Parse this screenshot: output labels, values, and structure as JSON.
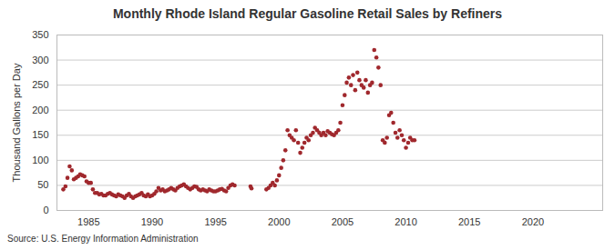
{
  "chart_data": {
    "type": "scatter",
    "title": "Monthly Rhode Island Regular Gasoline Retail Sales by Refiners",
    "y_label": "Thousand Gallons per Day",
    "source": "Source: U.S. Energy Information Administration",
    "color": "#a0282d",
    "marker": "circle",
    "grid": true,
    "xlim": [
      1982.5,
      2025.5
    ],
    "xticks": [
      1985,
      1990,
      1995,
      2000,
      2005,
      2010,
      2015,
      2020
    ],
    "ylim": [
      0,
      350
    ],
    "yticks": [
      0,
      50,
      100,
      150,
      200,
      250,
      300,
      350
    ],
    "x": [
      1983.0,
      1983.17,
      1983.33,
      1983.5,
      1983.67,
      1983.83,
      1984.0,
      1984.17,
      1984.33,
      1984.5,
      1984.67,
      1984.83,
      1985.0,
      1985.17,
      1985.33,
      1985.5,
      1985.67,
      1985.83,
      1986.0,
      1986.17,
      1986.33,
      1986.5,
      1986.67,
      1986.83,
      1987.0,
      1987.17,
      1987.33,
      1987.5,
      1987.67,
      1987.83,
      1988.0,
      1988.17,
      1988.33,
      1988.5,
      1988.67,
      1988.83,
      1989.0,
      1989.17,
      1989.33,
      1989.5,
      1989.67,
      1989.83,
      1990.0,
      1990.17,
      1990.33,
      1990.5,
      1990.67,
      1990.83,
      1991.0,
      1991.17,
      1991.33,
      1991.5,
      1991.67,
      1991.83,
      1992.0,
      1992.17,
      1992.33,
      1992.5,
      1992.67,
      1992.83,
      1993.0,
      1993.17,
      1993.33,
      1993.5,
      1993.67,
      1993.83,
      1994.0,
      1994.17,
      1994.33,
      1994.5,
      1994.67,
      1994.83,
      1995.0,
      1995.17,
      1995.33,
      1995.5,
      1995.67,
      1995.83,
      1996.0,
      1996.17,
      1996.33,
      1996.5,
      1997.75,
      1997.83,
      1999.0,
      1999.17,
      1999.33,
      1999.5,
      1999.67,
      1999.83,
      2000.0,
      2000.17,
      2000.33,
      2000.5,
      2000.67,
      2000.83,
      2001.0,
      2001.17,
      2001.33,
      2001.5,
      2001.67,
      2001.83,
      2002.0,
      2002.17,
      2002.33,
      2002.5,
      2002.67,
      2002.83,
      2003.0,
      2003.17,
      2003.33,
      2003.5,
      2003.67,
      2003.83,
      2004.0,
      2004.17,
      2004.33,
      2004.5,
      2004.67,
      2004.83,
      2005.0,
      2005.17,
      2005.33,
      2005.5,
      2005.67,
      2005.83,
      2006.0,
      2006.17,
      2006.33,
      2006.5,
      2006.67,
      2006.83,
      2007.0,
      2007.17,
      2007.33,
      2007.5,
      2007.67,
      2007.83,
      2008.0,
      2008.17,
      2008.33,
      2008.5,
      2008.67,
      2008.83,
      2009.0,
      2009.17,
      2009.33,
      2009.5,
      2009.67,
      2009.83,
      2010.0,
      2010.17,
      2010.33,
      2010.5,
      2010.67
    ],
    "values": [
      42,
      48,
      65,
      88,
      80,
      62,
      65,
      68,
      72,
      70,
      68,
      58,
      55,
      55,
      42,
      35,
      35,
      32,
      33,
      30,
      30,
      33,
      35,
      32,
      30,
      28,
      32,
      30,
      28,
      25,
      30,
      33,
      28,
      25,
      28,
      30,
      32,
      35,
      30,
      28,
      32,
      28,
      30,
      33,
      38,
      45,
      40,
      42,
      38,
      40,
      42,
      45,
      42,
      40,
      45,
      48,
      50,
      52,
      48,
      45,
      42,
      45,
      48,
      47,
      42,
      40,
      42,
      40,
      38,
      42,
      40,
      38,
      38,
      40,
      42,
      43,
      40,
      38,
      45,
      50,
      52,
      50,
      48,
      44,
      42,
      45,
      50,
      55,
      50,
      60,
      70,
      85,
      100,
      120,
      160,
      150,
      145,
      140,
      160,
      135,
      115,
      125,
      135,
      145,
      140,
      150,
      155,
      165,
      160,
      155,
      150,
      155,
      150,
      158,
      155,
      152,
      150,
      155,
      160,
      175,
      210,
      230,
      255,
      265,
      250,
      270,
      240,
      275,
      260,
      250,
      245,
      260,
      235,
      250,
      255,
      320,
      305,
      285,
      250,
      140,
      135,
      145,
      190,
      195,
      175,
      155,
      145,
      160,
      150,
      140,
      125,
      135,
      145,
      140,
      140
    ]
  }
}
